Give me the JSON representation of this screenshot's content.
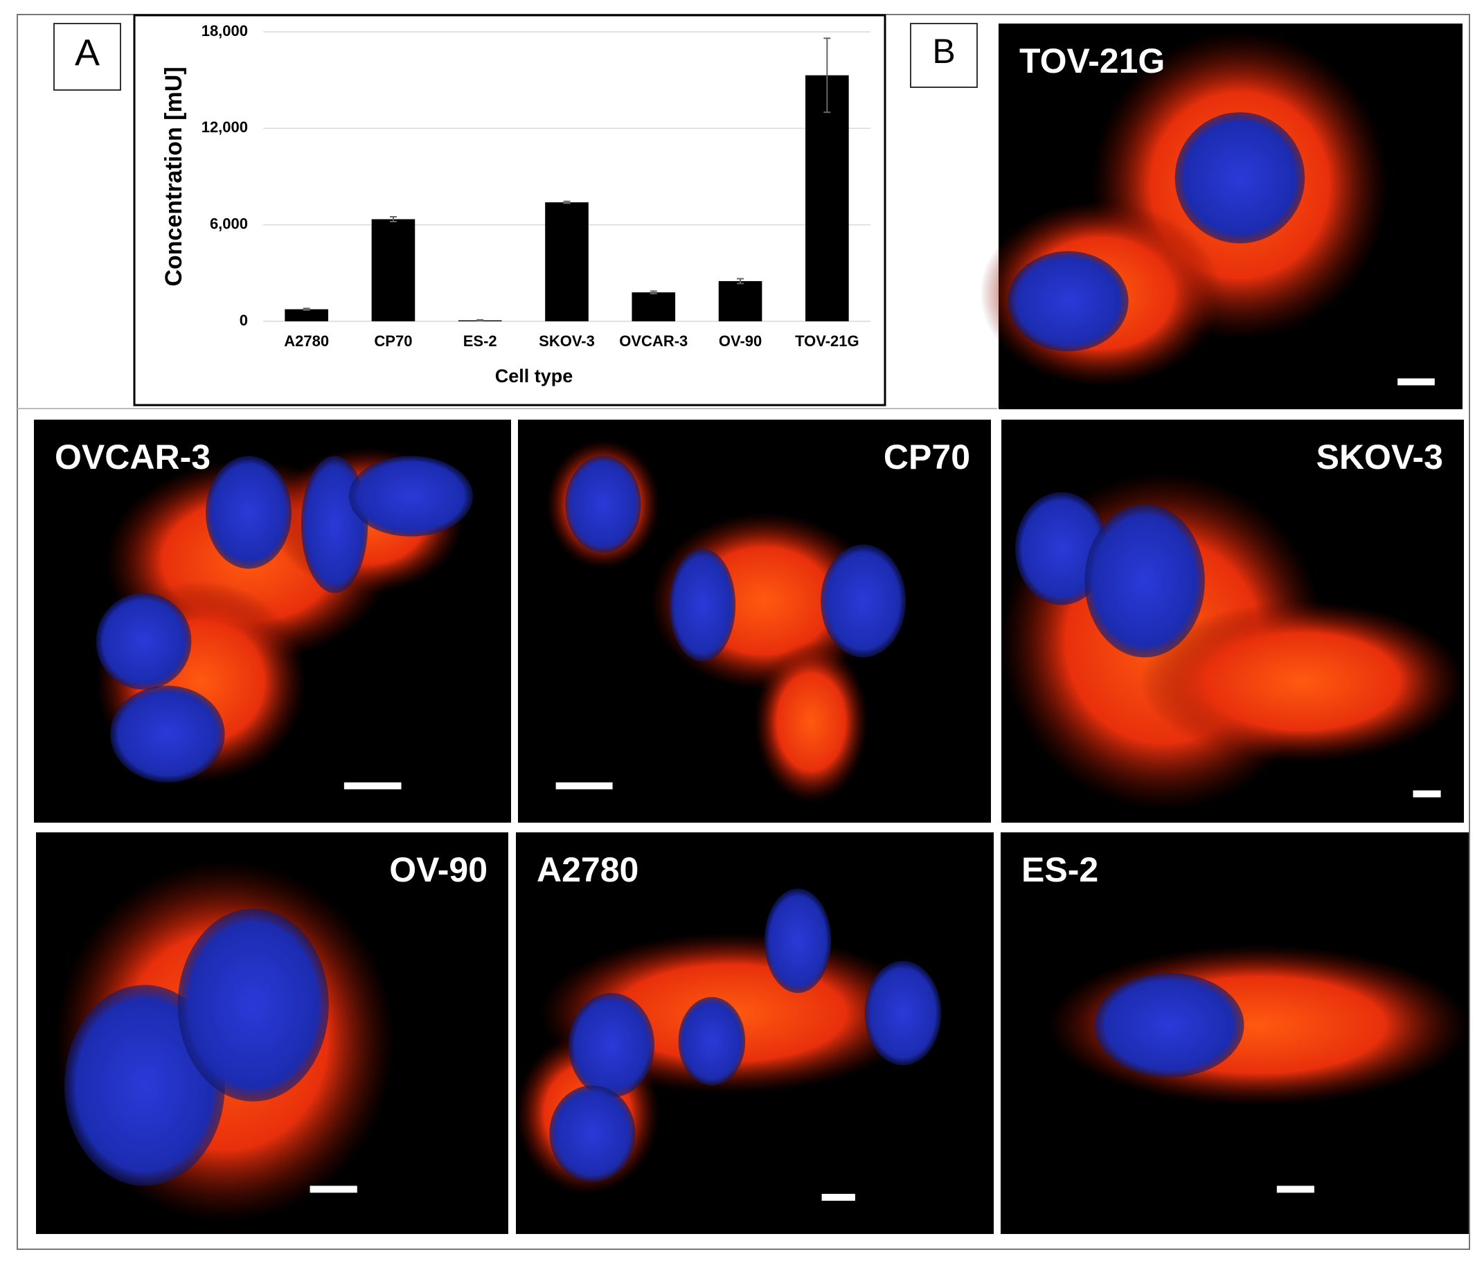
{
  "chart_data": {
    "type": "bar",
    "x_label": "Cell type",
    "y_label": "Concentration [mU]",
    "categories": [
      "A2780",
      "CP70",
      "ES-2",
      "SKOV-3",
      "OVCAR-3",
      "OV-90",
      "TOV-21G"
    ],
    "values": [
      750,
      6350,
      60,
      7400,
      1800,
      2500,
      15300
    ],
    "errors": [
      50,
      150,
      30,
      60,
      80,
      150,
      2300
    ],
    "color": "#000000",
    "ylim": [
      0,
      18000
    ],
    "yticks": [
      0,
      {
        "value": 6000,
        "label": "6,000"
      },
      {
        "value": 12000,
        "label": "12,000"
      },
      {
        "value": 18000,
        "label": "18,000"
      }
    ],
    "grid": true
  },
  "panels": [
    "A",
    "B"
  ],
  "micrographs": [
    {
      "label": "TOV-21G"
    },
    {
      "label": "OVCAR-3"
    },
    {
      "label": "CP70"
    },
    {
      "label": "SKOV-3"
    },
    {
      "label": "OV-90"
    },
    {
      "label": "A2780"
    },
    {
      "label": "ES-2"
    }
  ]
}
